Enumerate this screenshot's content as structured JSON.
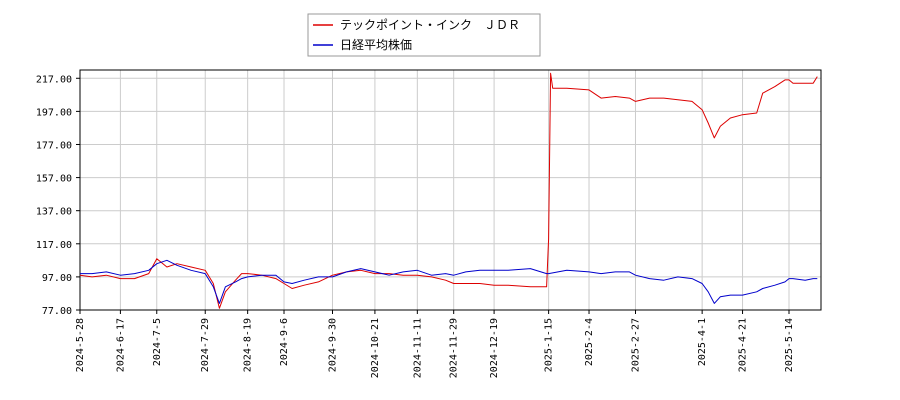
{
  "chart_data": {
    "type": "line",
    "title": "",
    "xlabel": "",
    "ylabel": "",
    "ylim": [
      77,
      222
    ],
    "grid": true,
    "legend_position": "top-center",
    "y_ticks": [
      "217.00",
      "197.00",
      "177.00",
      "157.00",
      "137.00",
      "117.00",
      "97.00",
      "77.00"
    ],
    "x_ticks": [
      "2024-5-28",
      "2024-6-17",
      "2024-7-5",
      "2024-7-29",
      "2024-8-19",
      "2024-9-6",
      "2024-9-30",
      "2024-10-21",
      "2024-11-11",
      "2024-11-29",
      "2024-12-19",
      "2025-1-15",
      "2025-2-4",
      "2025-2-27",
      "2025-4-1",
      "2025-4-21",
      "2025-5-14"
    ],
    "series": [
      {
        "name": "テックポイント・インク　ＪＤＲ",
        "color": "#dd0000",
        "points": [
          [
            "2024-5-28",
            98
          ],
          [
            "2024-6-3",
            97
          ],
          [
            "2024-6-10",
            98
          ],
          [
            "2024-6-17",
            96
          ],
          [
            "2024-6-24",
            96
          ],
          [
            "2024-7-1",
            99
          ],
          [
            "2024-7-5",
            108
          ],
          [
            "2024-7-10",
            103
          ],
          [
            "2024-7-15",
            105
          ],
          [
            "2024-7-22",
            103
          ],
          [
            "2024-7-29",
            101
          ],
          [
            "2024-8-2",
            93
          ],
          [
            "2024-8-5",
            78
          ],
          [
            "2024-8-8",
            88
          ],
          [
            "2024-8-13",
            95
          ],
          [
            "2024-8-16",
            99
          ],
          [
            "2024-8-19",
            99
          ],
          [
            "2024-8-26",
            98
          ],
          [
            "2024-9-2",
            96
          ],
          [
            "2024-9-6",
            93
          ],
          [
            "2024-9-10",
            90
          ],
          [
            "2024-9-16",
            92
          ],
          [
            "2024-9-23",
            94
          ],
          [
            "2024-9-30",
            98
          ],
          [
            "2024-10-7",
            100
          ],
          [
            "2024-10-14",
            101
          ],
          [
            "2024-10-21",
            99
          ],
          [
            "2024-10-28",
            99
          ],
          [
            "2024-11-4",
            98
          ],
          [
            "2024-11-11",
            98
          ],
          [
            "2024-11-18",
            97
          ],
          [
            "2024-11-25",
            95
          ],
          [
            "2024-11-29",
            93
          ],
          [
            "2024-12-5",
            93
          ],
          [
            "2024-12-12",
            93
          ],
          [
            "2024-12-19",
            92
          ],
          [
            "2024-12-26",
            92
          ],
          [
            "2025-1-6",
            91
          ],
          [
            "2025-1-14",
            91
          ],
          [
            "2025-1-15",
            120
          ],
          [
            "2025-1-16",
            220
          ],
          [
            "2025-1-17",
            211
          ],
          [
            "2025-1-24",
            211
          ],
          [
            "2025-2-4",
            210
          ],
          [
            "2025-2-10",
            205
          ],
          [
            "2025-2-17",
            206
          ],
          [
            "2025-2-24",
            205
          ],
          [
            "2025-2-27",
            203
          ],
          [
            "2025-3-6",
            205
          ],
          [
            "2025-3-13",
            205
          ],
          [
            "2025-3-20",
            204
          ],
          [
            "2025-3-27",
            203
          ],
          [
            "2025-4-1",
            198
          ],
          [
            "2025-4-4",
            190
          ],
          [
            "2025-4-7",
            181
          ],
          [
            "2025-4-10",
            188
          ],
          [
            "2025-4-15",
            193
          ],
          [
            "2025-4-21",
            195
          ],
          [
            "2025-4-28",
            196
          ],
          [
            "2025-5-1",
            208
          ],
          [
            "2025-5-7",
            212
          ],
          [
            "2025-5-12",
            216
          ],
          [
            "2025-5-14",
            216
          ],
          [
            "2025-5-16",
            214
          ],
          [
            "2025-5-22",
            214
          ],
          [
            "2025-5-26",
            214
          ],
          [
            "2025-5-28",
            218
          ]
        ]
      },
      {
        "name": "日経平均株価",
        "color": "#0000cc",
        "points": [
          [
            "2024-5-28",
            99
          ],
          [
            "2024-6-3",
            99
          ],
          [
            "2024-6-10",
            100
          ],
          [
            "2024-6-17",
            98
          ],
          [
            "2024-6-24",
            99
          ],
          [
            "2024-7-1",
            101
          ],
          [
            "2024-7-5",
            105
          ],
          [
            "2024-7-10",
            107
          ],
          [
            "2024-7-15",
            104
          ],
          [
            "2024-7-22",
            101
          ],
          [
            "2024-7-29",
            99
          ],
          [
            "2024-8-2",
            91
          ],
          [
            "2024-8-5",
            81
          ],
          [
            "2024-8-8",
            91
          ],
          [
            "2024-8-13",
            94
          ],
          [
            "2024-8-16",
            96
          ],
          [
            "2024-8-19",
            97
          ],
          [
            "2024-8-26",
            98
          ],
          [
            "2024-9-2",
            98
          ],
          [
            "2024-9-6",
            94
          ],
          [
            "2024-9-10",
            93
          ],
          [
            "2024-9-16",
            95
          ],
          [
            "2024-9-23",
            97
          ],
          [
            "2024-9-30",
            97
          ],
          [
            "2024-10-7",
            100
          ],
          [
            "2024-10-14",
            102
          ],
          [
            "2024-10-21",
            100
          ],
          [
            "2024-10-28",
            98
          ],
          [
            "2024-11-4",
            100
          ],
          [
            "2024-11-11",
            101
          ],
          [
            "2024-11-18",
            98
          ],
          [
            "2024-11-25",
            99
          ],
          [
            "2024-11-29",
            98
          ],
          [
            "2024-12-5",
            100
          ],
          [
            "2024-12-12",
            101
          ],
          [
            "2024-12-19",
            101
          ],
          [
            "2024-12-26",
            101
          ],
          [
            "2025-1-6",
            102
          ],
          [
            "2025-1-14",
            99
          ],
          [
            "2025-1-15",
            99
          ],
          [
            "2025-1-24",
            101
          ],
          [
            "2025-2-4",
            100
          ],
          [
            "2025-2-10",
            99
          ],
          [
            "2025-2-17",
            100
          ],
          [
            "2025-2-24",
            100
          ],
          [
            "2025-2-27",
            98
          ],
          [
            "2025-3-6",
            96
          ],
          [
            "2025-3-13",
            95
          ],
          [
            "2025-3-20",
            97
          ],
          [
            "2025-3-27",
            96
          ],
          [
            "2025-4-1",
            93
          ],
          [
            "2025-4-4",
            88
          ],
          [
            "2025-4-7",
            81
          ],
          [
            "2025-4-10",
            85
          ],
          [
            "2025-4-15",
            86
          ],
          [
            "2025-4-21",
            86
          ],
          [
            "2025-4-28",
            88
          ],
          [
            "2025-5-1",
            90
          ],
          [
            "2025-5-7",
            92
          ],
          [
            "2025-5-12",
            94
          ],
          [
            "2025-5-14",
            96
          ],
          [
            "2025-5-16",
            96
          ],
          [
            "2025-5-22",
            95
          ],
          [
            "2025-5-26",
            96
          ],
          [
            "2025-5-28",
            96
          ]
        ]
      }
    ]
  }
}
